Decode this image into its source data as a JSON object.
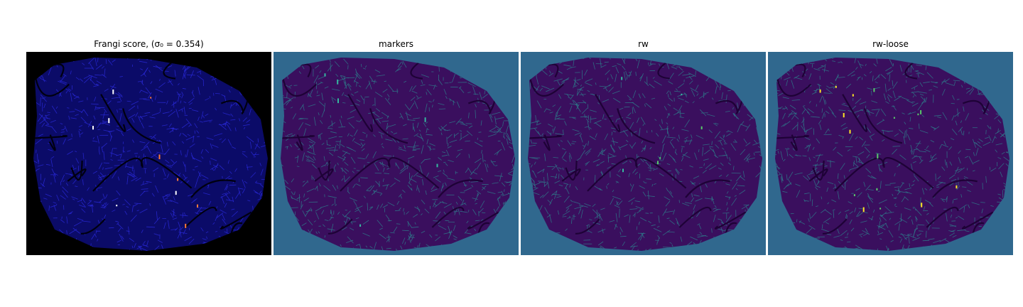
{
  "panels": [
    {
      "title": "Frangi score, (σ₀ = 0.354)",
      "background": "#000000",
      "blob_fill": "#0b0b68",
      "texture": "#2a2ad8",
      "highlights": [
        "#ff7a3a",
        "#ffffff"
      ]
    },
    {
      "title": "markers",
      "background": "#30688e",
      "blob_fill": "#3a0f5e",
      "texture": "#2e7b8a",
      "highlights": [
        "#36b8a0"
      ]
    },
    {
      "title": "rw",
      "background": "#30688e",
      "blob_fill": "#3a0f5e",
      "texture": "#2e7b8a",
      "highlights": [
        "#58c86a",
        "#36b8a0"
      ]
    },
    {
      "title": "rw-loose",
      "background": "#30688e",
      "blob_fill": "#3a0f5e",
      "texture": "#2e7b8a",
      "highlights": [
        "#fde725",
        "#58c86a"
      ]
    }
  ]
}
